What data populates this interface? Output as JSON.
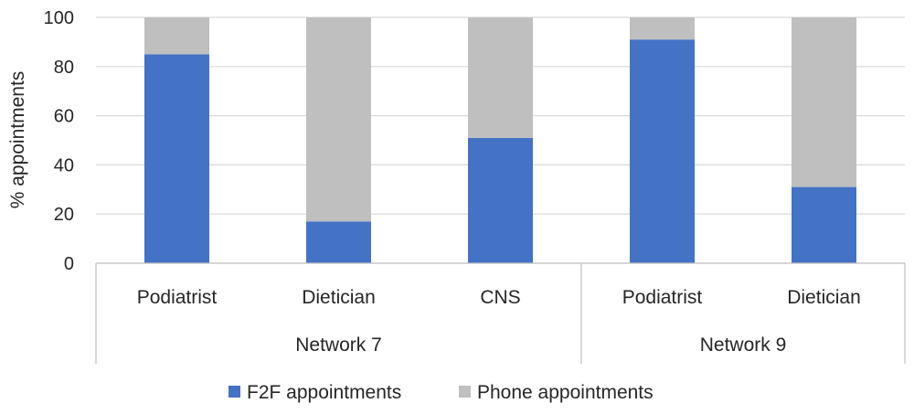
{
  "chart_data": {
    "type": "bar",
    "stacked": true,
    "ylabel": "% appointments",
    "ylim": [
      0,
      100
    ],
    "yticks": [
      0,
      20,
      40,
      60,
      80,
      100
    ],
    "grid": true,
    "legend_position": "bottom",
    "groups": [
      {
        "name": "Network 7",
        "categories": [
          "Podiatrist",
          "Dietician",
          "CNS"
        ]
      },
      {
        "name": "Network 9",
        "categories": [
          "Podiatrist",
          "Dietician"
        ]
      }
    ],
    "categories": [
      "Podiatrist",
      "Dietician",
      "CNS",
      "Podiatrist",
      "Dietician"
    ],
    "series": [
      {
        "name": "F2F appointments",
        "color": "#4472c4",
        "values": [
          85,
          17,
          51,
          91,
          31
        ]
      },
      {
        "name": "Phone appointments",
        "color": "#bfbfbf",
        "values": [
          15,
          83,
          49,
          9,
          69
        ]
      }
    ]
  }
}
